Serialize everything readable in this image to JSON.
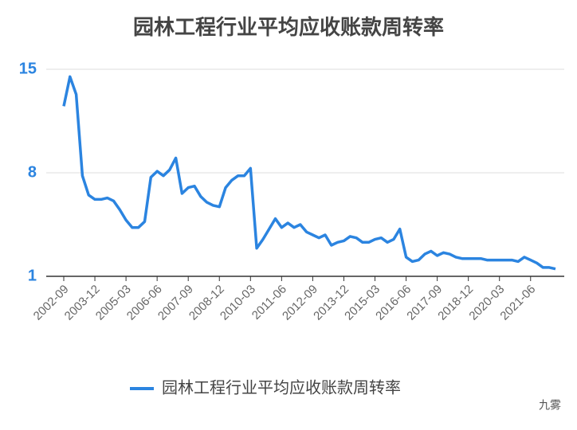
{
  "chart_data": {
    "type": "line",
    "title": "园林工程行业平均应收账款周转率",
    "categories": [
      "2002-09",
      null,
      null,
      null,
      null,
      "2003-12",
      null,
      null,
      null,
      null,
      "2005-03",
      null,
      null,
      null,
      null,
      "2006-06",
      null,
      null,
      null,
      null,
      "2007-09",
      null,
      null,
      null,
      null,
      "2008-12",
      null,
      null,
      null,
      null,
      "2010-03",
      null,
      null,
      null,
      null,
      "2011-06",
      null,
      null,
      null,
      null,
      "2012-09",
      null,
      null,
      null,
      null,
      "2013-12",
      null,
      null,
      null,
      null,
      "2015-03",
      null,
      null,
      null,
      null,
      "2016-06",
      null,
      null,
      null,
      null,
      "2017-09",
      null,
      null,
      null,
      null,
      "2018-12",
      null,
      null,
      null,
      null,
      "2020-03",
      null,
      null,
      null,
      null,
      "2021-06",
      null,
      null,
      null,
      null
    ],
    "series": [
      {
        "name": "园林工程行业平均应收账款周转率",
        "color": "#2b84e0",
        "values": [
          12.5,
          14.5,
          13.3,
          7.8,
          6.5,
          6.2,
          6.2,
          6.3,
          6.1,
          5.5,
          4.8,
          4.3,
          4.3,
          4.7,
          7.7,
          8.1,
          7.8,
          8.2,
          9.0,
          6.6,
          7.0,
          7.1,
          6.4,
          6.0,
          5.8,
          5.7,
          7.0,
          7.5,
          7.8,
          7.8,
          8.3,
          2.9,
          3.5,
          4.2,
          4.9,
          4.3,
          4.6,
          4.3,
          4.5,
          4.0,
          3.8,
          3.6,
          3.8,
          3.1,
          3.3,
          3.4,
          3.7,
          3.6,
          3.3,
          3.3,
          3.5,
          3.6,
          3.3,
          3.5,
          4.2,
          2.3,
          2.0,
          2.1,
          2.5,
          2.7,
          2.4,
          2.6,
          2.5,
          2.3,
          2.2,
          2.2,
          2.2,
          2.2,
          2.1,
          2.1,
          2.1,
          2.1,
          2.1,
          2.0,
          2.3,
          2.1,
          1.9,
          1.6,
          1.6,
          1.5
        ]
      }
    ],
    "ylim": [
      1,
      15
    ],
    "yticks": [
      1,
      8,
      15
    ],
    "grid": true,
    "legend": "bottom",
    "watermark": "九雾"
  }
}
